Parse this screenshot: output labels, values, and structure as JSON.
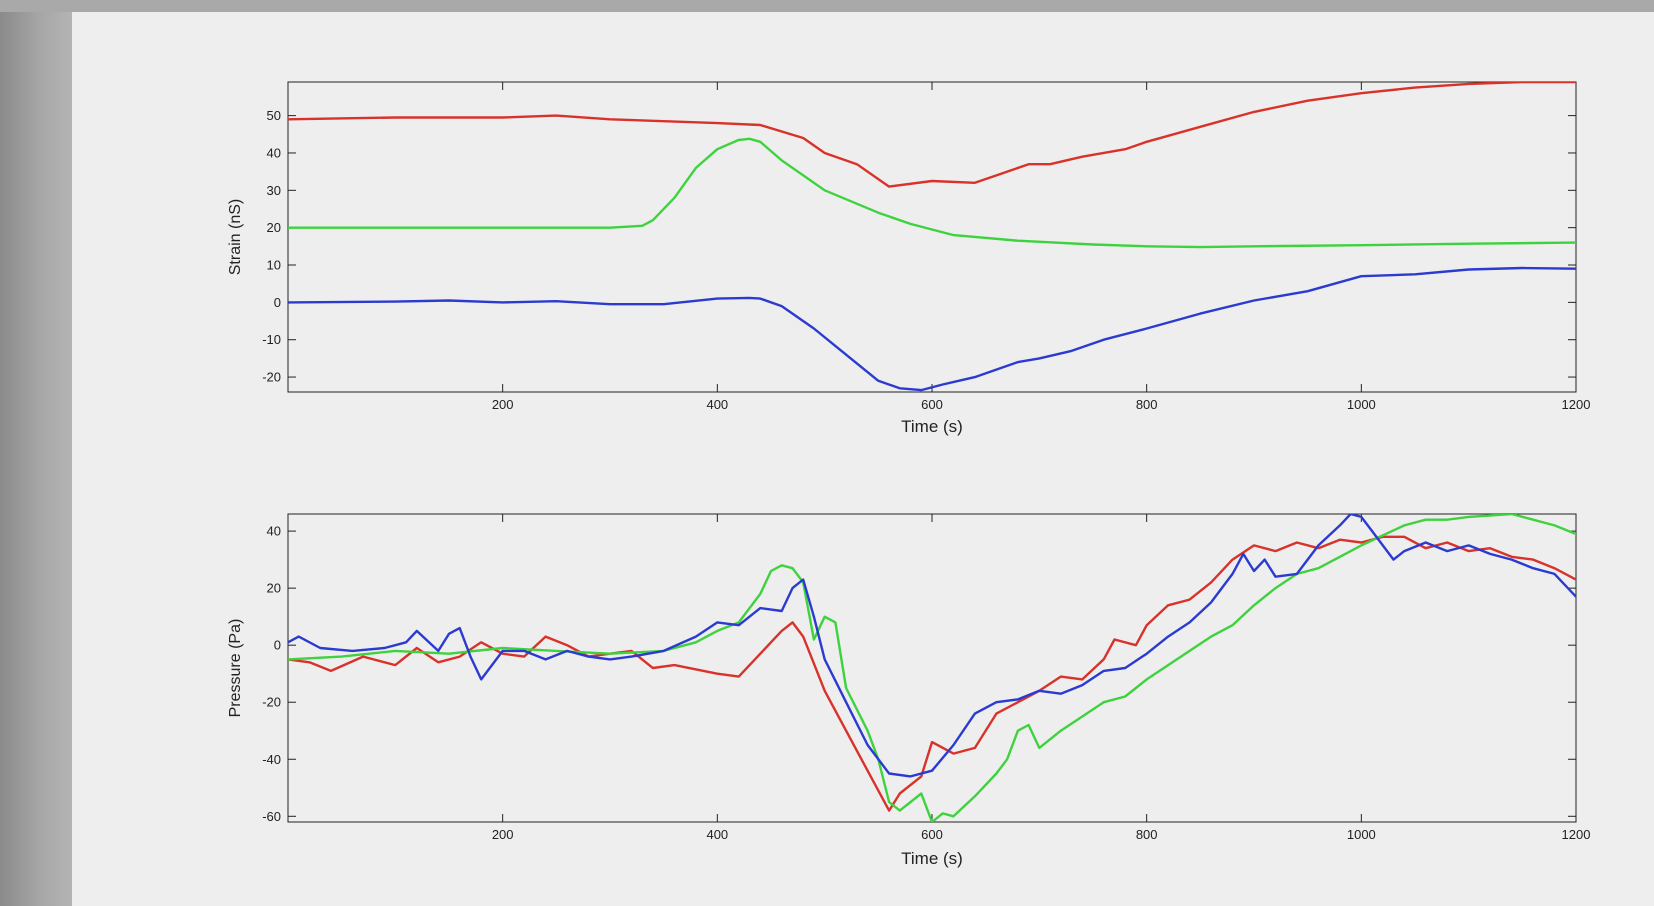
{
  "colors": {
    "red": "#d9322a",
    "green": "#3fd23f",
    "blue": "#2b3bd0"
  },
  "chart_data": [
    {
      "type": "line",
      "xlabel": "Time (s)",
      "ylabel": "Strain (nS)",
      "xlim": [
        0,
        1200
      ],
      "ylim": [
        -24,
        59
      ],
      "xticks": [
        200,
        400,
        600,
        800,
        1000,
        1200
      ],
      "yticks": [
        -20,
        -10,
        0,
        10,
        20,
        30,
        40,
        50
      ],
      "grid": false,
      "series": [
        {
          "color": "red",
          "points": [
            [
              0,
              49
            ],
            [
              100,
              49.5
            ],
            [
              200,
              49.5
            ],
            [
              250,
              50
            ],
            [
              300,
              49
            ],
            [
              400,
              48
            ],
            [
              440,
              47.5
            ],
            [
              480,
              44
            ],
            [
              500,
              40
            ],
            [
              530,
              37
            ],
            [
              560,
              31
            ],
            [
              600,
              32.5
            ],
            [
              640,
              32
            ],
            [
              660,
              34
            ],
            [
              690,
              37
            ],
            [
              710,
              37
            ],
            [
              740,
              39
            ],
            [
              780,
              41
            ],
            [
              800,
              43
            ],
            [
              850,
              47
            ],
            [
              900,
              51
            ],
            [
              950,
              54
            ],
            [
              1000,
              56
            ],
            [
              1050,
              57.5
            ],
            [
              1100,
              58.5
            ],
            [
              1150,
              59
            ],
            [
              1200,
              59
            ]
          ]
        },
        {
          "color": "green",
          "points": [
            [
              0,
              20
            ],
            [
              100,
              20
            ],
            [
              200,
              20
            ],
            [
              300,
              20
            ],
            [
              330,
              20.5
            ],
            [
              340,
              22
            ],
            [
              360,
              28
            ],
            [
              380,
              36
            ],
            [
              400,
              41
            ],
            [
              420,
              43.5
            ],
            [
              430,
              43.8
            ],
            [
              440,
              43
            ],
            [
              460,
              38
            ],
            [
              500,
              30
            ],
            [
              550,
              24
            ],
            [
              580,
              21
            ],
            [
              620,
              18
            ],
            [
              680,
              16.5
            ],
            [
              750,
              15.5
            ],
            [
              800,
              15
            ],
            [
              850,
              14.8
            ],
            [
              900,
              15
            ],
            [
              1000,
              15.3
            ],
            [
              1100,
              15.7
            ],
            [
              1200,
              16
            ]
          ]
        },
        {
          "color": "blue",
          "points": [
            [
              0,
              0
            ],
            [
              100,
              0.2
            ],
            [
              150,
              0.5
            ],
            [
              200,
              0
            ],
            [
              250,
              0.3
            ],
            [
              300,
              -0.5
            ],
            [
              350,
              -0.5
            ],
            [
              400,
              1
            ],
            [
              430,
              1.2
            ],
            [
              440,
              1
            ],
            [
              460,
              -1
            ],
            [
              490,
              -7
            ],
            [
              520,
              -14
            ],
            [
              550,
              -21
            ],
            [
              570,
              -23
            ],
            [
              590,
              -23.5
            ],
            [
              610,
              -22
            ],
            [
              640,
              -20
            ],
            [
              680,
              -16
            ],
            [
              700,
              -15
            ],
            [
              730,
              -13
            ],
            [
              760,
              -10
            ],
            [
              800,
              -7
            ],
            [
              850,
              -3
            ],
            [
              900,
              0.5
            ],
            [
              950,
              3
            ],
            [
              1000,
              7
            ],
            [
              1050,
              7.5
            ],
            [
              1100,
              8.8
            ],
            [
              1150,
              9.2
            ],
            [
              1200,
              9
            ]
          ]
        }
      ]
    },
    {
      "type": "line",
      "xlabel": "Time (s)",
      "ylabel": "Pressure (Pa)",
      "xlim": [
        0,
        1200
      ],
      "ylim": [
        -62,
        46
      ],
      "xticks": [
        200,
        400,
        600,
        800,
        1000,
        1200
      ],
      "yticks": [
        -60,
        -40,
        -20,
        0,
        20,
        40
      ],
      "grid": false,
      "series": [
        {
          "color": "red",
          "points": [
            [
              0,
              -5
            ],
            [
              20,
              -6
            ],
            [
              40,
              -9
            ],
            [
              70,
              -4
            ],
            [
              100,
              -7
            ],
            [
              120,
              -1
            ],
            [
              140,
              -6
            ],
            [
              160,
              -4
            ],
            [
              180,
              1
            ],
            [
              200,
              -3
            ],
            [
              220,
              -4
            ],
            [
              240,
              3
            ],
            [
              260,
              0
            ],
            [
              280,
              -4
            ],
            [
              300,
              -3
            ],
            [
              320,
              -2
            ],
            [
              340,
              -8
            ],
            [
              360,
              -7
            ],
            [
              400,
              -10
            ],
            [
              420,
              -11
            ],
            [
              440,
              -3
            ],
            [
              460,
              5
            ],
            [
              470,
              8
            ],
            [
              480,
              3
            ],
            [
              500,
              -16
            ],
            [
              520,
              -30
            ],
            [
              540,
              -44
            ],
            [
              560,
              -58
            ],
            [
              570,
              -52
            ],
            [
              590,
              -46
            ],
            [
              600,
              -34
            ],
            [
              620,
              -38
            ],
            [
              640,
              -36
            ],
            [
              660,
              -24
            ],
            [
              680,
              -20
            ],
            [
              700,
              -16
            ],
            [
              720,
              -11
            ],
            [
              740,
              -12
            ],
            [
              760,
              -5
            ],
            [
              770,
              2
            ],
            [
              790,
              0
            ],
            [
              800,
              7
            ],
            [
              820,
              14
            ],
            [
              840,
              16
            ],
            [
              860,
              22
            ],
            [
              880,
              30
            ],
            [
              900,
              35
            ],
            [
              920,
              33
            ],
            [
              940,
              36
            ],
            [
              960,
              34
            ],
            [
              980,
              37
            ],
            [
              1000,
              36
            ],
            [
              1020,
              38
            ],
            [
              1040,
              38
            ],
            [
              1060,
              34
            ],
            [
              1080,
              36
            ],
            [
              1100,
              33
            ],
            [
              1120,
              34
            ],
            [
              1140,
              31
            ],
            [
              1160,
              30
            ],
            [
              1180,
              27
            ],
            [
              1200,
              23
            ]
          ]
        },
        {
          "color": "green",
          "points": [
            [
              0,
              -5
            ],
            [
              50,
              -4
            ],
            [
              100,
              -2
            ],
            [
              150,
              -3
            ],
            [
              200,
              -1
            ],
            [
              250,
              -2
            ],
            [
              300,
              -3
            ],
            [
              350,
              -2
            ],
            [
              380,
              1
            ],
            [
              400,
              5
            ],
            [
              420,
              8
            ],
            [
              440,
              18
            ],
            [
              450,
              26
            ],
            [
              460,
              28
            ],
            [
              470,
              27
            ],
            [
              480,
              22
            ],
            [
              490,
              2
            ],
            [
              500,
              10
            ],
            [
              510,
              8
            ],
            [
              520,
              -15
            ],
            [
              540,
              -30
            ],
            [
              550,
              -40
            ],
            [
              560,
              -55
            ],
            [
              570,
              -58
            ],
            [
              590,
              -52
            ],
            [
              600,
              -62
            ],
            [
              610,
              -59
            ],
            [
              620,
              -60
            ],
            [
              640,
              -53
            ],
            [
              660,
              -45
            ],
            [
              670,
              -40
            ],
            [
              680,
              -30
            ],
            [
              690,
              -28
            ],
            [
              700,
              -36
            ],
            [
              720,
              -30
            ],
            [
              740,
              -25
            ],
            [
              760,
              -20
            ],
            [
              780,
              -18
            ],
            [
              800,
              -12
            ],
            [
              840,
              -2
            ],
            [
              860,
              3
            ],
            [
              880,
              7
            ],
            [
              900,
              14
            ],
            [
              920,
              20
            ],
            [
              940,
              25
            ],
            [
              960,
              27
            ],
            [
              980,
              31
            ],
            [
              1000,
              35
            ],
            [
              1040,
              42
            ],
            [
              1060,
              44
            ],
            [
              1080,
              44
            ],
            [
              1100,
              45
            ],
            [
              1140,
              46
            ],
            [
              1160,
              44
            ],
            [
              1180,
              42
            ],
            [
              1200,
              39
            ]
          ]
        },
        {
          "color": "blue",
          "points": [
            [
              0,
              1
            ],
            [
              10,
              3
            ],
            [
              30,
              -1
            ],
            [
              60,
              -2
            ],
            [
              90,
              -1
            ],
            [
              110,
              1
            ],
            [
              120,
              5
            ],
            [
              140,
              -2
            ],
            [
              150,
              4
            ],
            [
              160,
              6
            ],
            [
              170,
              -4
            ],
            [
              180,
              -12
            ],
            [
              200,
              -2
            ],
            [
              220,
              -2
            ],
            [
              240,
              -5
            ],
            [
              260,
              -2
            ],
            [
              280,
              -4
            ],
            [
              300,
              -5
            ],
            [
              320,
              -4
            ],
            [
              350,
              -2
            ],
            [
              380,
              3
            ],
            [
              400,
              8
            ],
            [
              420,
              7
            ],
            [
              440,
              13
            ],
            [
              460,
              12
            ],
            [
              470,
              20
            ],
            [
              480,
              23
            ],
            [
              490,
              10
            ],
            [
              500,
              -5
            ],
            [
              520,
              -20
            ],
            [
              540,
              -35
            ],
            [
              560,
              -45
            ],
            [
              580,
              -46
            ],
            [
              600,
              -44
            ],
            [
              620,
              -35
            ],
            [
              640,
              -24
            ],
            [
              660,
              -20
            ],
            [
              680,
              -19
            ],
            [
              700,
              -16
            ],
            [
              720,
              -17
            ],
            [
              740,
              -14
            ],
            [
              760,
              -9
            ],
            [
              780,
              -8
            ],
            [
              800,
              -3
            ],
            [
              820,
              3
            ],
            [
              840,
              8
            ],
            [
              860,
              15
            ],
            [
              880,
              25
            ],
            [
              890,
              32
            ],
            [
              900,
              26
            ],
            [
              910,
              30
            ],
            [
              920,
              24
            ],
            [
              940,
              25
            ],
            [
              960,
              35
            ],
            [
              980,
              42
            ],
            [
              990,
              46
            ],
            [
              1000,
              45
            ],
            [
              1010,
              40
            ],
            [
              1020,
              35
            ],
            [
              1030,
              30
            ],
            [
              1040,
              33
            ],
            [
              1060,
              36
            ],
            [
              1080,
              33
            ],
            [
              1100,
              35
            ],
            [
              1120,
              32
            ],
            [
              1140,
              30
            ],
            [
              1160,
              27
            ],
            [
              1180,
              25
            ],
            [
              1200,
              17
            ]
          ]
        }
      ]
    }
  ]
}
